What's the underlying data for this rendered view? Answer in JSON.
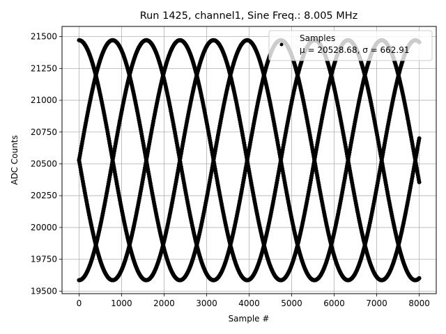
{
  "chart_data": {
    "type": "scatter",
    "title": "Run 1425, channel1, Sine Freq.: 8.005 MHz",
    "xlabel": "Sample #",
    "ylabel": "ADC Counts",
    "xlim": [
      -400,
      8400
    ],
    "ylim": [
      19480,
      21580
    ],
    "xticks": [
      0,
      1000,
      2000,
      3000,
      4000,
      5000,
      6000,
      7000,
      8000
    ],
    "yticks": [
      19500,
      19750,
      20000,
      20250,
      20500,
      20750,
      21000,
      21250,
      21500
    ],
    "grid": true,
    "legend_placement": "top-right",
    "marker_color": "#000000",
    "series": [
      {
        "name": "Samples",
        "legend_stats": "μ = 20528.68, σ = 662.91",
        "mean": 20528.68,
        "amplitude": 943,
        "period_samples": 3163,
        "sample_range": [
          0,
          8000
        ],
        "branch_phase_offsets_samples": [
          0,
          2372,
          1581,
          791
        ],
        "x_step": 10
      }
    ]
  }
}
